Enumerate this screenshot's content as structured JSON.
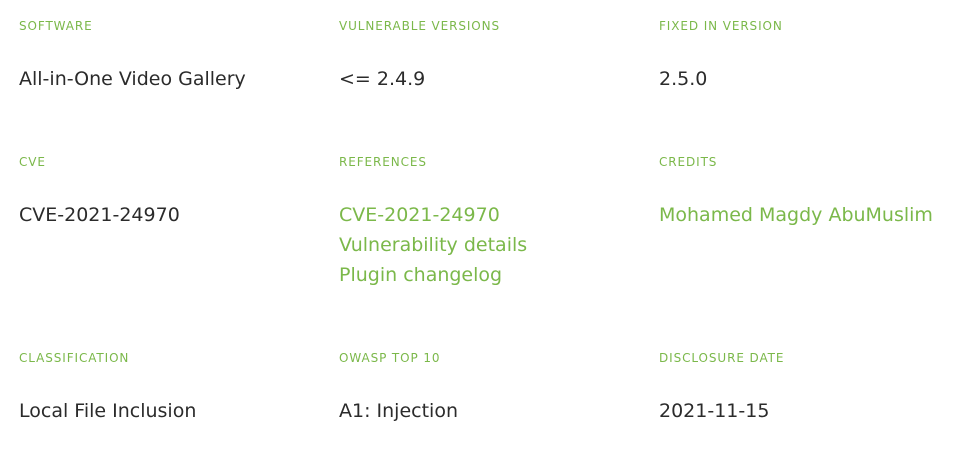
{
  "details": {
    "software": {
      "label": "SOFTWARE",
      "value": "All-in-One Video Gallery"
    },
    "vulnerable_versions": {
      "label": "VULNERABLE VERSIONS",
      "value": "<= 2.4.9"
    },
    "fixed_in": {
      "label": "FIXED IN VERSION",
      "value": "2.5.0"
    },
    "cve": {
      "label": "CVE",
      "value": "CVE-2021-24970"
    },
    "references": {
      "label": "REFERENCES",
      "links": [
        "CVE-2021-24970",
        "Vulnerability details",
        "Plugin changelog"
      ]
    },
    "credits": {
      "label": "CREDITS",
      "value": "Mohamed Magdy AbuMuslim"
    },
    "classification": {
      "label": "CLASSIFICATION",
      "value": "Local File Inclusion"
    },
    "owasp": {
      "label": "OWASP TOP 10",
      "value": "A1: Injection"
    },
    "disclosure_date": {
      "label": "DISCLOSURE DATE",
      "value": "2021-11-15"
    }
  },
  "colors": {
    "accent": "#7bb84a",
    "text": "#2b2b2b",
    "background": "#ffffff"
  }
}
